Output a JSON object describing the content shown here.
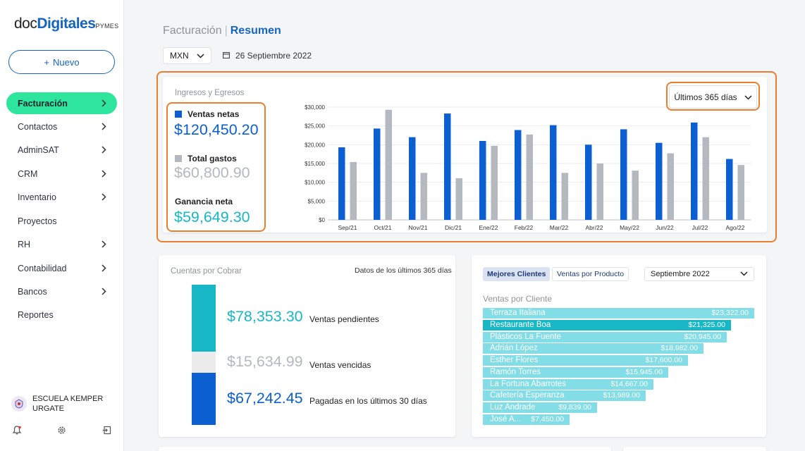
{
  "sidebar": {
    "logo": {
      "part1": "doc",
      "part2": "Digitales",
      "part3": "PYMES"
    },
    "new_button": {
      "icon": "+",
      "label": "Nuevo"
    },
    "items": [
      {
        "label": "Facturación",
        "active": true,
        "chevron": true
      },
      {
        "label": "Contactos",
        "chevron": true
      },
      {
        "label": "AdminSAT",
        "chevron": true
      },
      {
        "label": "CRM",
        "chevron": true
      },
      {
        "label": "Inventario",
        "chevron": true
      },
      {
        "label": "Proyectos",
        "chevron": false
      },
      {
        "label": "RH",
        "chevron": true
      },
      {
        "label": "Contabilidad",
        "chevron": true
      },
      {
        "label": "Bancos",
        "chevron": true
      },
      {
        "label": "Reportes",
        "chevron": false
      }
    ],
    "org_name": "ESCUELA KEMPER URGATE",
    "footer_icons": [
      "bell-icon",
      "gear-icon",
      "logout-icon"
    ]
  },
  "header": {
    "section": "Facturación",
    "separator": "|",
    "page": "Resumen",
    "currency": "MXN",
    "date": "26 Septiembre 2022"
  },
  "overview": {
    "title": "Ingresos y Egresos",
    "range_label": "Últimos 365 días",
    "kpis": {
      "sales_label": "Ventas netas",
      "sales_value": "$120,450.20",
      "expenses_label": "Total gastos",
      "expenses_value": "$60,800.90",
      "profit_label": "Ganancia neta",
      "profit_value": "$59,649.30"
    },
    "colors": {
      "sales": "#0b5fd0",
      "expenses": "#b4b8bf",
      "profit": "#18b7c6"
    }
  },
  "chart_data": {
    "type": "bar",
    "categories": [
      "Sep/21",
      "Oct/21",
      "Nov/21",
      "Dic/21",
      "Ene/22",
      "Feb/22",
      "Mar/22",
      "Abr/22",
      "May/22",
      "Jun/22",
      "Jul/22",
      "Ago/22"
    ],
    "series": [
      {
        "name": "Ventas netas",
        "color": "#0b5fd0",
        "values": [
          19300,
          24300,
          22000,
          28300,
          21000,
          23900,
          25200,
          20000,
          24100,
          20500,
          25900,
          16200
        ]
      },
      {
        "name": "Total gastos",
        "color": "#b4b8bf",
        "values": [
          15400,
          29300,
          12500,
          11100,
          19700,
          22700,
          12500,
          15000,
          13100,
          17700,
          22000,
          14600
        ]
      }
    ],
    "ylim": [
      0,
      30000
    ],
    "yticks": [
      "$0",
      "$5,000",
      "$10,000",
      "$15,000",
      "$20,000",
      "$25,000",
      "$30,000"
    ],
    "grid": true
  },
  "receivables": {
    "title": "Cuentas por Cobrar",
    "subtitle": "Datos de los últimos 365 días",
    "items": [
      {
        "value": "$78,353.30",
        "label": "Ventas pendientes",
        "color": "#18b7c6"
      },
      {
        "value": "$15,634.99",
        "label": "Ventas vencidas",
        "color": "#b4b8bf"
      },
      {
        "value": "$67,242.45",
        "label": "Pagadas en los últimos 30 días",
        "color": "#0b5fd0"
      }
    ]
  },
  "clients": {
    "tabs": [
      {
        "label": "Mejores Clientes",
        "active": true
      },
      {
        "label": "Ventas por Producto",
        "active": false
      }
    ],
    "month": "Septiembre 2022",
    "title": "Ventas por Cliente",
    "rows": [
      {
        "name": "Terraza Italiana",
        "amount": "$23,322.00",
        "value": 23322
      },
      {
        "name": "Restaurante Boa",
        "amount": "$21,325.00",
        "value": 21325,
        "highlight": true
      },
      {
        "name": "Plásticos La Fuente",
        "amount": "$20,945.00",
        "value": 20945
      },
      {
        "name": "Adrián López",
        "amount": "$18,982.00",
        "value": 18982
      },
      {
        "name": "Esther Flores",
        "amount": "$17,600.00",
        "value": 17600
      },
      {
        "name": "Ramón Torres",
        "amount": "$15,945.00",
        "value": 15945
      },
      {
        "name": "La Fortuna Abarrotes",
        "amount": "$14,667.00",
        "value": 14667
      },
      {
        "name": "Cafetería Esperanza",
        "amount": "$13,989.00",
        "value": 13989
      },
      {
        "name": "Luz Andrade",
        "amount": "$9,839.00",
        "value": 9839
      },
      {
        "name": "José A...",
        "amount": "$7,450.00",
        "value": 7450
      }
    ]
  }
}
